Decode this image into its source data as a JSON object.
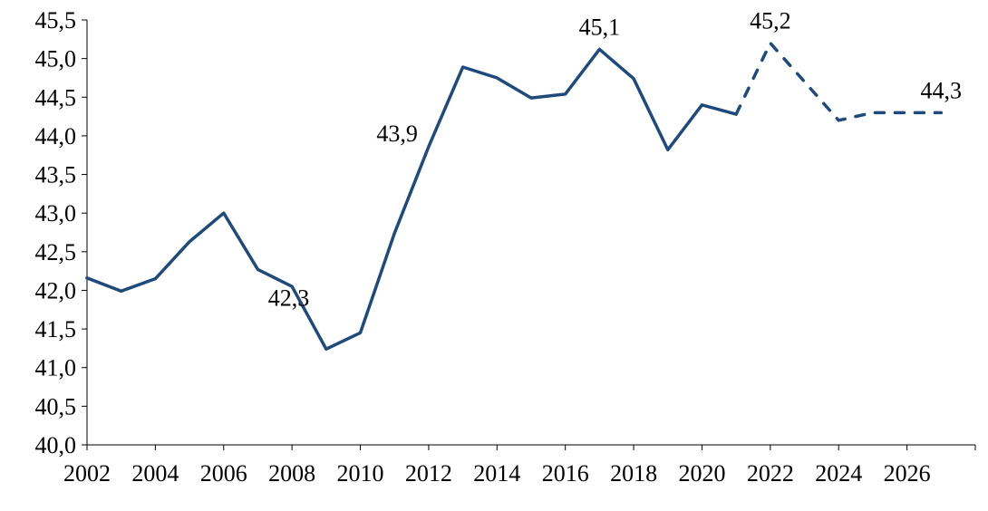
{
  "chart_data": {
    "type": "line",
    "title": "",
    "xlabel": "",
    "ylabel": "",
    "xlim": [
      2002,
      2028
    ],
    "ylim": [
      40.0,
      45.5
    ],
    "x_ticks": [
      2002,
      2004,
      2006,
      2008,
      2010,
      2012,
      2014,
      2016,
      2018,
      2020,
      2022,
      2024,
      2026
    ],
    "x_tick_labels": [
      "2002",
      "2004",
      "2006",
      "2008",
      "2010",
      "2012",
      "2014",
      "2016",
      "2018",
      "2020",
      "2022",
      "2024",
      "2026"
    ],
    "y_ticks": [
      40.0,
      40.5,
      41.0,
      41.5,
      42.0,
      42.5,
      43.0,
      43.5,
      44.0,
      44.5,
      45.0,
      45.5
    ],
    "y_tick_labels": [
      "40,0",
      "40,5",
      "41,0",
      "41,5",
      "42,0",
      "42,5",
      "43,0",
      "43,5",
      "44,0",
      "44,5",
      "45,0",
      "45,5"
    ],
    "grid": false,
    "color": "#1f4a7c",
    "series": [
      {
        "style": "solid",
        "x": [
          2002,
          2003,
          2004,
          2005,
          2006,
          2007,
          2008,
          2009,
          2010,
          2011,
          2012,
          2013,
          2014,
          2015,
          2016,
          2017,
          2018,
          2019,
          2020,
          2021
        ],
        "values": [
          42.16,
          41.99,
          42.15,
          42.63,
          43.0,
          42.27,
          42.05,
          41.24,
          41.45,
          42.74,
          43.86,
          44.89,
          44.75,
          44.49,
          44.54,
          45.12,
          44.74,
          43.82,
          44.4,
          44.28
        ]
      },
      {
        "style": "dashed",
        "x": [
          2021,
          2022,
          2023,
          2024,
          2025,
          2026,
          2027
        ],
        "values": [
          44.28,
          45.2,
          44.7,
          44.2,
          44.3,
          44.3,
          44.3
        ]
      }
    ],
    "annotations": [
      {
        "x": 2007,
        "y": 42.27,
        "text": "42,3",
        "position": "below"
      },
      {
        "x": 2012,
        "y": 43.86,
        "text": "43,9",
        "position": "left"
      },
      {
        "x": 2017,
        "y": 45.12,
        "text": "45,1",
        "position": "above"
      },
      {
        "x": 2022,
        "y": 45.2,
        "text": "45,2",
        "position": "above"
      },
      {
        "x": 2027,
        "y": 44.3,
        "text": "44,3",
        "position": "above"
      }
    ]
  }
}
